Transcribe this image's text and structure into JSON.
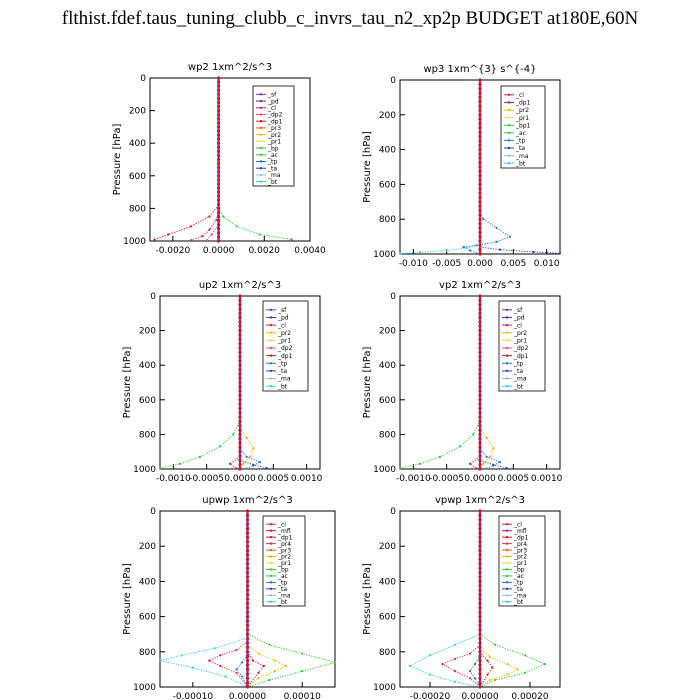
{
  "title": "flthist.fdef.taus_tuning_clubb_c_invrs_tau_n2_xp2p  BUDGET at180E,60N",
  "colors": {
    "sf": "#7b2fbe",
    "pd": "#5a2aa0",
    "cl": "#e0204a",
    "mfl": "#c01880",
    "dp1": "#c81828",
    "dp2": "#ff4488",
    "pr4": "#e03060",
    "pr3": "#ff5a1a",
    "pr2": "#f5b800",
    "pr1": "#ffd84a",
    "bp": "#33cc33",
    "bp1": "#33cc33",
    "ac": "#33cc33",
    "tp": "#2277dd",
    "ta": "#2244cc",
    "ma": "#9bb8e6",
    "bt": "#33ccee"
  },
  "chart_data": [
    {
      "type": "line",
      "title": "wp2   1xm^2/s^3",
      "ylabel": "Pressure [hPa]",
      "xlim": [
        -0.003,
        0.004
      ],
      "ylim": [
        1000,
        0
      ],
      "xticks": [
        "-0.0020",
        "0.0000",
        "0.0020",
        "0.0040"
      ],
      "xtick_values": [
        -0.002,
        0.0,
        0.002,
        0.004
      ],
      "yticks": [
        "0",
        "200",
        "400",
        "600",
        "800",
        "1000"
      ],
      "legend": [
        "_sf",
        "_pd",
        "_cl",
        "_dp2",
        "_dp1",
        "_pr3",
        "_pr2",
        "_pr1",
        "_bp",
        "_ac",
        "_tp",
        "_ta",
        "_ma",
        "_bt"
      ],
      "legend_keys": [
        "sf",
        "pd",
        "cl",
        "dp2",
        "dp1",
        "pr3",
        "pr2",
        "pr1",
        "bp",
        "ac",
        "tp",
        "ta",
        "ma",
        "bt"
      ],
      "series": [
        {
          "key": "bp",
          "x": [
            0,
            0,
            0.0002,
            0.0008,
            0.0018,
            0.0032
          ],
          "y": [
            0,
            780,
            850,
            910,
            960,
            990
          ]
        },
        {
          "key": "dp1",
          "x": [
            0,
            0,
            -0.0004,
            -0.0012,
            -0.0022,
            -0.0028
          ],
          "y": [
            0,
            780,
            850,
            910,
            960,
            990
          ]
        },
        {
          "key": "cl",
          "x": [
            0,
            -0.0001,
            -0.0004,
            -0.0007,
            -0.0012
          ],
          "y": [
            820,
            870,
            930,
            970,
            995
          ]
        },
        {
          "key": "dp2",
          "x": [
            0,
            -0.0003,
            -0.0005
          ],
          "y": [
            900,
            960,
            995
          ]
        },
        {
          "key": "sf",
          "x": [
            0,
            0
          ],
          "y": [
            0,
            1000
          ]
        }
      ]
    },
    {
      "type": "line",
      "title": "wp3   1xm^{3} s^{-4}",
      "ylabel": "Pressure [hPa]",
      "xlim": [
        -0.012,
        0.012
      ],
      "ylim": [
        1000,
        0
      ],
      "xticks": [
        "-0.010",
        "-0.005",
        "0.000",
        "0.005",
        "0.010"
      ],
      "xtick_values": [
        -0.01,
        -0.005,
        0.0,
        0.005,
        0.01
      ],
      "yticks": [
        "0",
        "200",
        "400",
        "600",
        "800",
        "1000"
      ],
      "legend": [
        "_cl",
        "_dp1",
        "_pr2",
        "_pr1",
        "_bp1",
        "_ac",
        "_tp",
        "_ta",
        "_ma",
        "_bt"
      ],
      "legend_keys": [
        "cl",
        "dp1",
        "pr2",
        "pr1",
        "bp1",
        "ac",
        "tp",
        "ta",
        "ma",
        "bt"
      ],
      "series": [
        {
          "key": "tp",
          "x": [
            0,
            0.0005,
            0.0025,
            0.0045,
            0.0025,
            -0.0005,
            -0.0025,
            -0.0015,
            0
          ],
          "y": [
            760,
            800,
            850,
            900,
            930,
            950,
            960,
            980,
            1000
          ]
        },
        {
          "key": "bt",
          "x": [
            0,
            -0.002,
            -0.005,
            -0.009,
            -0.012
          ],
          "y": [
            950,
            965,
            980,
            990,
            998
          ]
        },
        {
          "key": "ta",
          "x": [
            0,
            0.003,
            0.008,
            0.012
          ],
          "y": [
            960,
            975,
            988,
            996
          ]
        },
        {
          "key": "cl",
          "x": [
            0,
            0
          ],
          "y": [
            0,
            1000
          ]
        }
      ]
    },
    {
      "type": "line",
      "title": "up2   1xm^2/s^3",
      "ylabel": "Pressure [hPa]",
      "xlim": [
        -0.0012,
        0.0012
      ],
      "ylim": [
        1000,
        0
      ],
      "xticks": [
        "-0.0010",
        "-0.0005",
        "0.0000",
        "0.0005",
        "0.0010"
      ],
      "xtick_values": [
        -0.001,
        -0.0005,
        0.0,
        0.0005,
        0.001
      ],
      "yticks": [
        "0",
        "200",
        "400",
        "600",
        "800",
        "1000"
      ],
      "legend": [
        "_sf",
        "_pd",
        "_cl",
        "_pr2",
        "_pr1",
        "_dp2",
        "_dp1",
        "_tp",
        "_ta",
        "_ma",
        "_bt"
      ],
      "legend_keys": [
        "sf",
        "pd",
        "cl",
        "pr2",
        "pr1",
        "dp2",
        "dp1",
        "tp",
        "ta",
        "ma",
        "bt"
      ],
      "series": [
        {
          "key": "bp",
          "x": [
            0,
            -0.0001,
            -0.0003,
            -0.0006,
            -0.0009,
            -0.0012
          ],
          "y": [
            720,
            800,
            870,
            930,
            970,
            995
          ]
        },
        {
          "key": "pr2",
          "x": [
            0,
            0.0001,
            0.0002,
            0.00015,
            5e-05,
            0
          ],
          "y": [
            760,
            820,
            880,
            930,
            970,
            1000
          ]
        },
        {
          "key": "tp",
          "x": [
            0,
            0.0001,
            0.0003,
            0.0002,
            0.0001
          ],
          "y": [
            880,
            930,
            960,
            980,
            998
          ]
        },
        {
          "key": "ta",
          "x": [
            0,
            0.0002,
            0.0004
          ],
          "y": [
            950,
            975,
            995
          ]
        },
        {
          "key": "dp1",
          "x": [
            0,
            -0.00015,
            -5e-05
          ],
          "y": [
            930,
            970,
            998
          ]
        },
        {
          "key": "sf",
          "x": [
            0,
            0
          ],
          "y": [
            0,
            1000
          ]
        }
      ]
    },
    {
      "type": "line",
      "title": "vp2   1xm^2/s^3",
      "ylabel": "Pressure [hPa]",
      "xlim": [
        -0.0012,
        0.0012
      ],
      "ylim": [
        1000,
        0
      ],
      "xticks": [
        "-0.0010",
        "-0.0005",
        "0.0000",
        "0.0005",
        "0.0010"
      ],
      "xtick_values": [
        -0.001,
        -0.0005,
        0.0,
        0.0005,
        0.001
      ],
      "yticks": [
        "0",
        "200",
        "400",
        "600",
        "800",
        "1000"
      ],
      "legend": [
        "_sf",
        "_pd",
        "_cl",
        "_pr2",
        "_pr1",
        "_dp2",
        "_dp1",
        "_tp",
        "_ta",
        "_ma",
        "_bt"
      ],
      "legend_keys": [
        "sf",
        "pd",
        "cl",
        "pr2",
        "pr1",
        "dp2",
        "dp1",
        "tp",
        "ta",
        "ma",
        "bt"
      ],
      "series": [
        {
          "key": "bp",
          "x": [
            0,
            -0.0001,
            -0.0003,
            -0.0006,
            -0.0009,
            -0.0012
          ],
          "y": [
            720,
            800,
            870,
            930,
            970,
            995
          ]
        },
        {
          "key": "pr2",
          "x": [
            0,
            0.0001,
            0.0002,
            0.00015,
            5e-05,
            0
          ],
          "y": [
            760,
            820,
            880,
            930,
            970,
            1000
          ]
        },
        {
          "key": "tp",
          "x": [
            0,
            0.0001,
            0.0003,
            0.0002,
            0.0001
          ],
          "y": [
            880,
            930,
            960,
            980,
            998
          ]
        },
        {
          "key": "ta",
          "x": [
            0,
            0.0002,
            0.0004
          ],
          "y": [
            950,
            975,
            995
          ]
        },
        {
          "key": "dp1",
          "x": [
            0,
            -0.00015,
            -5e-05
          ],
          "y": [
            930,
            970,
            998
          ]
        },
        {
          "key": "sf",
          "x": [
            0,
            0
          ],
          "y": [
            0,
            1000
          ]
        }
      ]
    },
    {
      "type": "line",
      "title": "upwp   1xm^2/s^3",
      "ylabel": "Pressure [hPa]",
      "xlim": [
        -0.00016,
        0.00016
      ],
      "ylim": [
        1000,
        0
      ],
      "xticks": [
        "-0.00010",
        "0.00000",
        "0.00010"
      ],
      "xtick_values": [
        -0.0001,
        0.0,
        0.0001
      ],
      "yticks": [
        "0",
        "200",
        "400",
        "600",
        "800",
        "1000"
      ],
      "legend": [
        "_cl",
        "_mfl",
        "_dp1",
        "_pr4",
        "_pr3",
        "_pr2",
        "_pr1",
        "_bp",
        "_ac",
        "_tp",
        "_ta",
        "_ma",
        "_bt"
      ],
      "legend_keys": [
        "cl",
        "mfl",
        "dp1",
        "pr4",
        "pr3",
        "pr2",
        "pr1",
        "bp",
        "ac",
        "tp",
        "ta",
        "ma",
        "bt"
      ],
      "series": [
        {
          "key": "bp",
          "x": [
            0,
            4e-05,
            0.0001,
            0.00016,
            0.0001,
            4e-05,
            0
          ],
          "y": [
            700,
            760,
            810,
            860,
            910,
            960,
            1000
          ]
        },
        {
          "key": "bt",
          "x": [
            0,
            -6e-05,
            -0.00012,
            -0.00016,
            -0.0001,
            -4e-05,
            0
          ],
          "y": [
            720,
            780,
            820,
            850,
            890,
            940,
            1000
          ]
        },
        {
          "key": "cl",
          "x": [
            0,
            -2e-05,
            -5e-05,
            -7e-05,
            -5e-05,
            -2e-05,
            0
          ],
          "y": [
            740,
            790,
            820,
            850,
            880,
            920,
            1000
          ]
        },
        {
          "key": "pr2",
          "x": [
            0,
            2e-05,
            5e-05,
            7e-05,
            5e-05,
            2e-05,
            0
          ],
          "y": [
            760,
            810,
            850,
            880,
            910,
            950,
            1000
          ]
        },
        {
          "key": "dp1",
          "x": [
            0,
            1e-05,
            3e-05,
            2e-05,
            0
          ],
          "y": [
            800,
            850,
            880,
            920,
            1000
          ]
        },
        {
          "key": "tp",
          "x": [
            0,
            -1e-05,
            -2e-05,
            -1e-05,
            0
          ],
          "y": [
            820,
            860,
            900,
            940,
            1000
          ]
        },
        {
          "key": "sf",
          "x": [
            0,
            0
          ],
          "y": [
            0,
            1000
          ]
        }
      ]
    },
    {
      "type": "line",
      "title": "vpwp   1xm^2/s^3",
      "ylabel": "Pressure [hPa]",
      "xlim": [
        -0.00032,
        0.00032
      ],
      "ylim": [
        1000,
        0
      ],
      "xticks": [
        "-0.00020",
        "0.00000",
        "0.00020"
      ],
      "xtick_values": [
        -0.0002,
        0.0,
        0.0002
      ],
      "yticks": [
        "0",
        "200",
        "400",
        "600",
        "800",
        "1000"
      ],
      "legend": [
        "_cl",
        "_mfl",
        "_dp1",
        "_pr4",
        "_pr3",
        "_pr2",
        "_pr1",
        "_bp",
        "_ac",
        "_tp",
        "_ta",
        "_ma",
        "_bt"
      ],
      "legend_keys": [
        "cl",
        "mfl",
        "dp1",
        "pr4",
        "pr3",
        "pr2",
        "pr1",
        "bp",
        "ac",
        "tp",
        "ta",
        "ma",
        "bt"
      ],
      "series": [
        {
          "key": "bp",
          "x": [
            0,
            6e-05,
            0.00018,
            0.00026,
            0.00018,
            6e-05,
            0
          ],
          "y": [
            700,
            760,
            820,
            870,
            920,
            960,
            1000
          ]
        },
        {
          "key": "bt",
          "x": [
            0,
            -0.0001,
            -0.0002,
            -0.00028,
            -0.0002,
            -0.0001,
            0
          ],
          "y": [
            700,
            760,
            820,
            880,
            930,
            970,
            1000
          ]
        },
        {
          "key": "cl",
          "x": [
            0,
            -4e-05,
            -0.0001,
            -0.00015,
            -0.0001,
            -4e-05,
            0
          ],
          "y": [
            760,
            810,
            840,
            870,
            910,
            950,
            1000
          ]
        },
        {
          "key": "pr2",
          "x": [
            0,
            4e-05,
            0.00011,
            0.00015,
            0.00011,
            4e-05,
            0
          ],
          "y": [
            780,
            830,
            870,
            900,
            930,
            960,
            1000
          ]
        },
        {
          "key": "dp1",
          "x": [
            0,
            3e-05,
            5e-05,
            3e-05,
            0
          ],
          "y": [
            800,
            850,
            890,
            930,
            1000
          ]
        },
        {
          "key": "tp",
          "x": [
            0,
            -2e-05,
            -4e-05,
            -2e-05,
            0
          ],
          "y": [
            820,
            870,
            910,
            950,
            1000
          ]
        },
        {
          "key": "sf",
          "x": [
            0,
            0
          ],
          "y": [
            0,
            1000
          ]
        }
      ]
    }
  ]
}
